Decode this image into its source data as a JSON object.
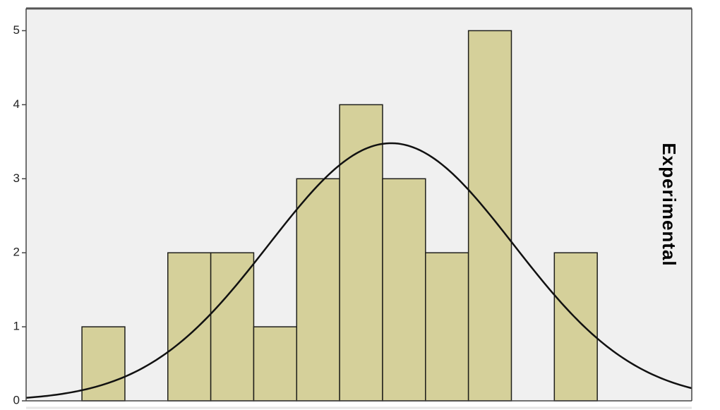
{
  "chart_data": {
    "type": "bar",
    "subtype": "histogram",
    "panel_label": "Experimental",
    "bins": [
      {
        "start": 0,
        "end": 1,
        "count": 1
      },
      {
        "start": 1,
        "end": 2,
        "count": 0
      },
      {
        "start": 2,
        "end": 3,
        "count": 2
      },
      {
        "start": 3,
        "end": 4,
        "count": 2
      },
      {
        "start": 4,
        "end": 5,
        "count": 1
      },
      {
        "start": 5,
        "end": 6,
        "count": 3
      },
      {
        "start": 6,
        "end": 7,
        "count": 4
      },
      {
        "start": 7,
        "end": 8,
        "count": 3
      },
      {
        "start": 8,
        "end": 9,
        "count": 2
      },
      {
        "start": 9,
        "end": 10,
        "count": 5
      },
      {
        "start": 10,
        "end": 11,
        "count": 0
      },
      {
        "start": 11,
        "end": 12,
        "count": 2
      }
    ],
    "xlim": [
      -1.3,
      14.2
    ],
    "ylim": [
      0,
      5.3
    ],
    "yticks": [
      "0",
      "1",
      "2",
      "3",
      "4",
      "5"
    ],
    "normal_curve": {
      "mean": 7.2,
      "sd": 2.85,
      "peak": 3.48
    },
    "grid": false,
    "colors": {
      "bar_fill": "#d5d09a",
      "bar_edge": "#1f1f1a",
      "background": "#f0f0f0",
      "curve": "#111111"
    }
  }
}
